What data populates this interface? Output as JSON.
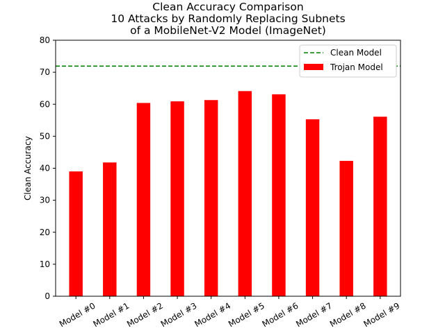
{
  "chart_data": {
    "type": "bar",
    "title_lines": [
      "Clean Accuracy Comparison",
      "10 Attacks by Randomly Replacing Subnets",
      "of a MobileNet-V2 Model (ImageNet)"
    ],
    "xlabel": "",
    "ylabel": "Clean Accuracy",
    "ylim": [
      0,
      80
    ],
    "yticks": [
      0,
      10,
      20,
      30,
      40,
      50,
      60,
      70,
      80
    ],
    "categories": [
      "Model #0",
      "Model #1",
      "Model #2",
      "Model #3",
      "Model #4",
      "Model #5",
      "Model #6",
      "Model #7",
      "Model #8",
      "Model #9"
    ],
    "series": [
      {
        "name": "Trojan Model",
        "color": "#ff0000",
        "values": [
          39.0,
          41.8,
          60.4,
          60.9,
          61.3,
          64.1,
          63.1,
          55.3,
          42.3,
          56.1
        ]
      }
    ],
    "reference_line": {
      "name": "Clean Model",
      "value": 71.9,
      "color": "#008000",
      "style": "dashed"
    },
    "legend_position": "top-right",
    "grid": false
  }
}
